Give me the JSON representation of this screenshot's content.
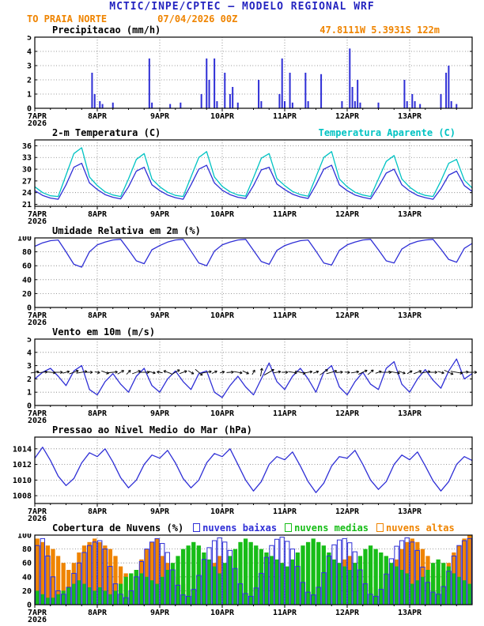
{
  "colors": {
    "title_blue": "#2424c0",
    "orange": "#ef8400",
    "line_blue": "#2f2fd6",
    "cyan": "#00c3c3",
    "green": "#17bd17",
    "black": "#000000"
  },
  "header": {
    "title": "MCTIC/INPE/CPTEC — MODELO REGIONAL WRF",
    "station": "TO PRAIA NORTE",
    "run": "07/04/2026 00Z",
    "coords": "47.8111W 5.3931S 122m"
  },
  "x_axis": {
    "labels": [
      "7APR",
      "8APR",
      "9APR",
      "10APR",
      "11APR",
      "12APR",
      "13APR"
    ],
    "label_hours": [
      0,
      24,
      48,
      72,
      96,
      120,
      144
    ],
    "year": "2026",
    "total_hours": 168
  },
  "chart_data": [
    {
      "id": "precip",
      "type": "bar",
      "title": "Precipitacao (mm/h)",
      "ylim": [
        0,
        5
      ],
      "yticks": [
        0,
        1,
        2,
        3,
        4,
        5
      ],
      "step_hours": 1,
      "bar_color": "#2f2fd6",
      "values": [
        0,
        0,
        0,
        0,
        0,
        0,
        0,
        0,
        0,
        0,
        0,
        0,
        0,
        0,
        0,
        0,
        0,
        0,
        0,
        0,
        0,
        0,
        2.5,
        1,
        0,
        0.5,
        0.3,
        0,
        0,
        0,
        0.4,
        0,
        0,
        0,
        0,
        0,
        0,
        0,
        0,
        0,
        0,
        0,
        0,
        0,
        3.5,
        0.4,
        0,
        0,
        0,
        0,
        0,
        0,
        0.3,
        0,
        0,
        0,
        0.4,
        0,
        0,
        0,
        0,
        0,
        0,
        0,
        1,
        0,
        3.5,
        2,
        0,
        3.5,
        0.5,
        0,
        0,
        2.5,
        0,
        1,
        1.5,
        0,
        0.4,
        0,
        0,
        0,
        0,
        0,
        0,
        0,
        2,
        0.5,
        0,
        0,
        0,
        0,
        0,
        0,
        1,
        3.5,
        0.5,
        0,
        2.5,
        0.4,
        0,
        0,
        0,
        0,
        2.5,
        0.5,
        0,
        0,
        0,
        0,
        2.4,
        0,
        0,
        0,
        0,
        0,
        0,
        0,
        0.5,
        0,
        0,
        4.2,
        1.5,
        0.5,
        2,
        0.4,
        0,
        0,
        0,
        0,
        0,
        0,
        0.4,
        0,
        0,
        0,
        0,
        0,
        0,
        0,
        0,
        0,
        2,
        0.5,
        0,
        1,
        0.5,
        0,
        0.3,
        0,
        0,
        0,
        0,
        0,
        0,
        0,
        1,
        0,
        2.5,
        3,
        0.5,
        0,
        0.3,
        0,
        0,
        0,
        0,
        0
      ]
    },
    {
      "id": "temp",
      "type": "line",
      "title": "2-m Temperatura (C)",
      "legend": "Temperatura Aparente (C)",
      "ylim": [
        20.5,
        37.5
      ],
      "yticks": [
        21,
        24,
        27,
        30,
        33,
        36
      ],
      "step_hours": 3,
      "series": [
        {
          "name": "2-m Temperatura (C)",
          "color": "#2f2fd6",
          "values": [
            24.5,
            23.3,
            22.6,
            22.3,
            26.0,
            30.5,
            31.5,
            26.5,
            24.8,
            23.5,
            22.8,
            22.4,
            25.5,
            29.5,
            30.5,
            26.0,
            24.5,
            23.4,
            22.7,
            22.3,
            26.0,
            30.0,
            31.0,
            26.5,
            24.6,
            23.5,
            22.8,
            22.5,
            25.8,
            29.8,
            30.5,
            26.2,
            24.8,
            23.6,
            22.9,
            22.5,
            26.0,
            30.0,
            31.0,
            26.0,
            24.5,
            23.4,
            22.8,
            22.4,
            25.5,
            29.0,
            30.0,
            26.0,
            24.4,
            23.3,
            22.7,
            22.3,
            25.0,
            28.5,
            29.5,
            25.8,
            24.3
          ]
        },
        {
          "name": "Temperatura Aparente (C)",
          "color": "#00c3c3",
          "values": [
            25.5,
            24.0,
            23.2,
            23.0,
            28.5,
            34.0,
            35.5,
            28.0,
            25.8,
            24.2,
            23.4,
            23.0,
            27.5,
            32.5,
            34.0,
            27.5,
            25.5,
            24.1,
            23.3,
            23.0,
            28.0,
            33.0,
            34.5,
            28.0,
            25.6,
            24.2,
            23.4,
            23.1,
            27.8,
            32.8,
            34.0,
            27.6,
            25.8,
            24.3,
            23.5,
            23.1,
            28.0,
            33.0,
            34.5,
            27.5,
            25.5,
            24.1,
            23.4,
            23.0,
            27.5,
            32.0,
            33.5,
            27.5,
            25.4,
            24.0,
            23.3,
            23.0,
            27.0,
            31.5,
            32.5,
            27.2,
            25.2
          ]
        }
      ]
    },
    {
      "id": "rh",
      "type": "line",
      "title": "Umidade Relativa em 2m (%)",
      "ylim": [
        0,
        100
      ],
      "yticks": [
        0,
        20,
        40,
        60,
        80,
        100
      ],
      "step_hours": 3,
      "series": [
        {
          "name": "Umidade Relativa em 2m (%)",
          "color": "#2f2fd6",
          "values": [
            88,
            93,
            96,
            97,
            80,
            62,
            58,
            80,
            90,
            94,
            97,
            98,
            83,
            67,
            63,
            83,
            89,
            94,
            97,
            98,
            81,
            64,
            60,
            81,
            90,
            94,
            97,
            98,
            82,
            66,
            62,
            82,
            89,
            93,
            96,
            97,
            81,
            64,
            61,
            82,
            90,
            94,
            97,
            98,
            83,
            67,
            64,
            84,
            91,
            95,
            97,
            98,
            84,
            69,
            65,
            85,
            92
          ]
        }
      ]
    },
    {
      "id": "wind",
      "type": "line",
      "title": "Vento em 10m (m/s)",
      "ylim": [
        0,
        5
      ],
      "yticks": [
        0,
        1,
        2,
        3,
        4,
        5
      ],
      "step_hours": 3,
      "series": [
        {
          "name": "Vento em 10m (m/s)",
          "color": "#2f2fd6",
          "values": [
            2.0,
            2.5,
            2.8,
            2.2,
            1.5,
            2.6,
            3.0,
            1.2,
            0.8,
            1.8,
            2.4,
            1.6,
            1.0,
            2.2,
            2.8,
            1.5,
            1.0,
            2.0,
            2.6,
            1.8,
            1.2,
            2.4,
            2.6,
            1.0,
            0.6,
            1.5,
            2.2,
            1.4,
            0.8,
            2.0,
            3.2,
            1.8,
            1.2,
            2.2,
            2.8,
            2.0,
            1.0,
            2.5,
            3.0,
            1.4,
            0.8,
            1.8,
            2.5,
            1.6,
            1.2,
            2.8,
            3.3,
            1.6,
            1.0,
            2.0,
            2.7,
            1.9,
            1.3,
            2.6,
            3.5,
            2.0,
            2.4
          ]
        }
      ],
      "barbs": {
        "y_value": 2.5,
        "color": "#000000",
        "dir_deg": [
          10,
          5,
          -5,
          0,
          15,
          20,
          10,
          0,
          -10,
          -20,
          5,
          30,
          45,
          20,
          0,
          -15,
          170,
          160,
          30,
          20,
          -30,
          -40,
          10,
          25,
          15,
          5,
          -10,
          -25,
          60,
          80,
          30,
          10,
          0,
          -10,
          -15,
          10,
          20,
          35,
          15,
          5,
          -5,
          10,
          25,
          40,
          20,
          0,
          -10,
          -20,
          30,
          20,
          10,
          0,
          -15,
          -25,
          -10,
          5,
          0
        ]
      }
    },
    {
      "id": "pres",
      "type": "line",
      "title": "Pressao ao Nivel Medio do Mar (hPa)",
      "ylim": [
        1007,
        1015.5
      ],
      "yticks": [
        1008,
        1010,
        1012,
        1014
      ],
      "step_hours": 3,
      "series": [
        {
          "name": "Pressao ao Nivel Medio do Mar (hPa)",
          "color": "#2f2fd6",
          "values": [
            1012.8,
            1014.2,
            1012.5,
            1010.5,
            1009.3,
            1010.2,
            1012.2,
            1013.5,
            1013.0,
            1014.0,
            1012.3,
            1010.3,
            1009.0,
            1010.0,
            1012.0,
            1013.2,
            1012.8,
            1013.8,
            1012.2,
            1010.2,
            1009.0,
            1010.0,
            1012.2,
            1013.4,
            1013.0,
            1014.0,
            1012.0,
            1010.0,
            1008.6,
            1009.8,
            1012.0,
            1013.0,
            1012.6,
            1013.6,
            1011.8,
            1009.8,
            1008.4,
            1009.6,
            1011.8,
            1013.0,
            1012.8,
            1013.8,
            1012.0,
            1010.0,
            1008.8,
            1009.8,
            1012.0,
            1013.2,
            1012.6,
            1013.6,
            1011.8,
            1009.9,
            1008.6,
            1009.8,
            1012.0,
            1013.0,
            1012.5
          ]
        }
      ]
    },
    {
      "id": "clouds",
      "type": "multibar",
      "title": "Cobertura de Nuvens (%)",
      "ylim": [
        0,
        100
      ],
      "yticks": [
        0,
        20,
        40,
        60,
        80,
        100
      ],
      "step_hours": 2,
      "legend": [
        {
          "label": "nuvens baixas",
          "color": "#2f2fd6"
        },
        {
          "label": "nuvens medias",
          "color": "#17bd17"
        },
        {
          "label": "nuvens altas",
          "color": "#ef8400"
        }
      ],
      "series": [
        {
          "name": "nuvens altas",
          "color": "#ef8400",
          "fill": true,
          "values": [
            95,
            90,
            85,
            80,
            70,
            60,
            50,
            60,
            75,
            85,
            90,
            95,
            90,
            85,
            80,
            70,
            55,
            45,
            40,
            50,
            65,
            80,
            90,
            95,
            70,
            60,
            50,
            40,
            30,
            20,
            20,
            30,
            40,
            50,
            60,
            70,
            40,
            30,
            20,
            15,
            10,
            10,
            15,
            20,
            30,
            40,
            50,
            60,
            50,
            40,
            30,
            20,
            15,
            10,
            15,
            25,
            35,
            45,
            55,
            65,
            70,
            60,
            50,
            35,
            25,
            20,
            25,
            35,
            50,
            65,
            80,
            90,
            95,
            90,
            80,
            70,
            55,
            45,
            50,
            60,
            75,
            85,
            95,
            100
          ]
        },
        {
          "name": "nuvens medias",
          "color": "#17bd17",
          "fill": true,
          "values": [
            20,
            15,
            10,
            10,
            15,
            20,
            25,
            30,
            35,
            30,
            25,
            20,
            25,
            20,
            15,
            20,
            30,
            40,
            45,
            50,
            45,
            40,
            35,
            30,
            40,
            50,
            60,
            70,
            80,
            85,
            90,
            85,
            75,
            65,
            55,
            45,
            60,
            70,
            80,
            90,
            95,
            90,
            85,
            80,
            75,
            70,
            65,
            60,
            55,
            65,
            75,
            85,
            90,
            95,
            90,
            85,
            75,
            65,
            60,
            55,
            50,
            60,
            70,
            80,
            85,
            80,
            75,
            70,
            60,
            55,
            50,
            45,
            30,
            35,
            40,
            50,
            60,
            65,
            60,
            55,
            45,
            40,
            35,
            30
          ]
        },
        {
          "name": "nuvens baixas",
          "color": "#2f2fd6",
          "fill": false,
          "values": [
            85,
            95,
            70,
            40,
            20,
            15,
            25,
            45,
            60,
            75,
            85,
            90,
            92,
            80,
            55,
            30,
            15,
            10,
            20,
            40,
            62,
            80,
            90,
            95,
            88,
            75,
            50,
            28,
            14,
            12,
            22,
            42,
            65,
            82,
            92,
            96,
            90,
            78,
            52,
            30,
            16,
            12,
            24,
            45,
            68,
            85,
            94,
            97,
            91,
            80,
            55,
            32,
            18,
            14,
            25,
            46,
            70,
            86,
            93,
            95,
            89,
            76,
            50,
            30,
            15,
            12,
            22,
            44,
            66,
            84,
            92,
            96,
            90,
            78,
            54,
            32,
            18,
            15,
            26,
            48,
            70,
            85,
            92,
            95
          ]
        }
      ]
    }
  ]
}
